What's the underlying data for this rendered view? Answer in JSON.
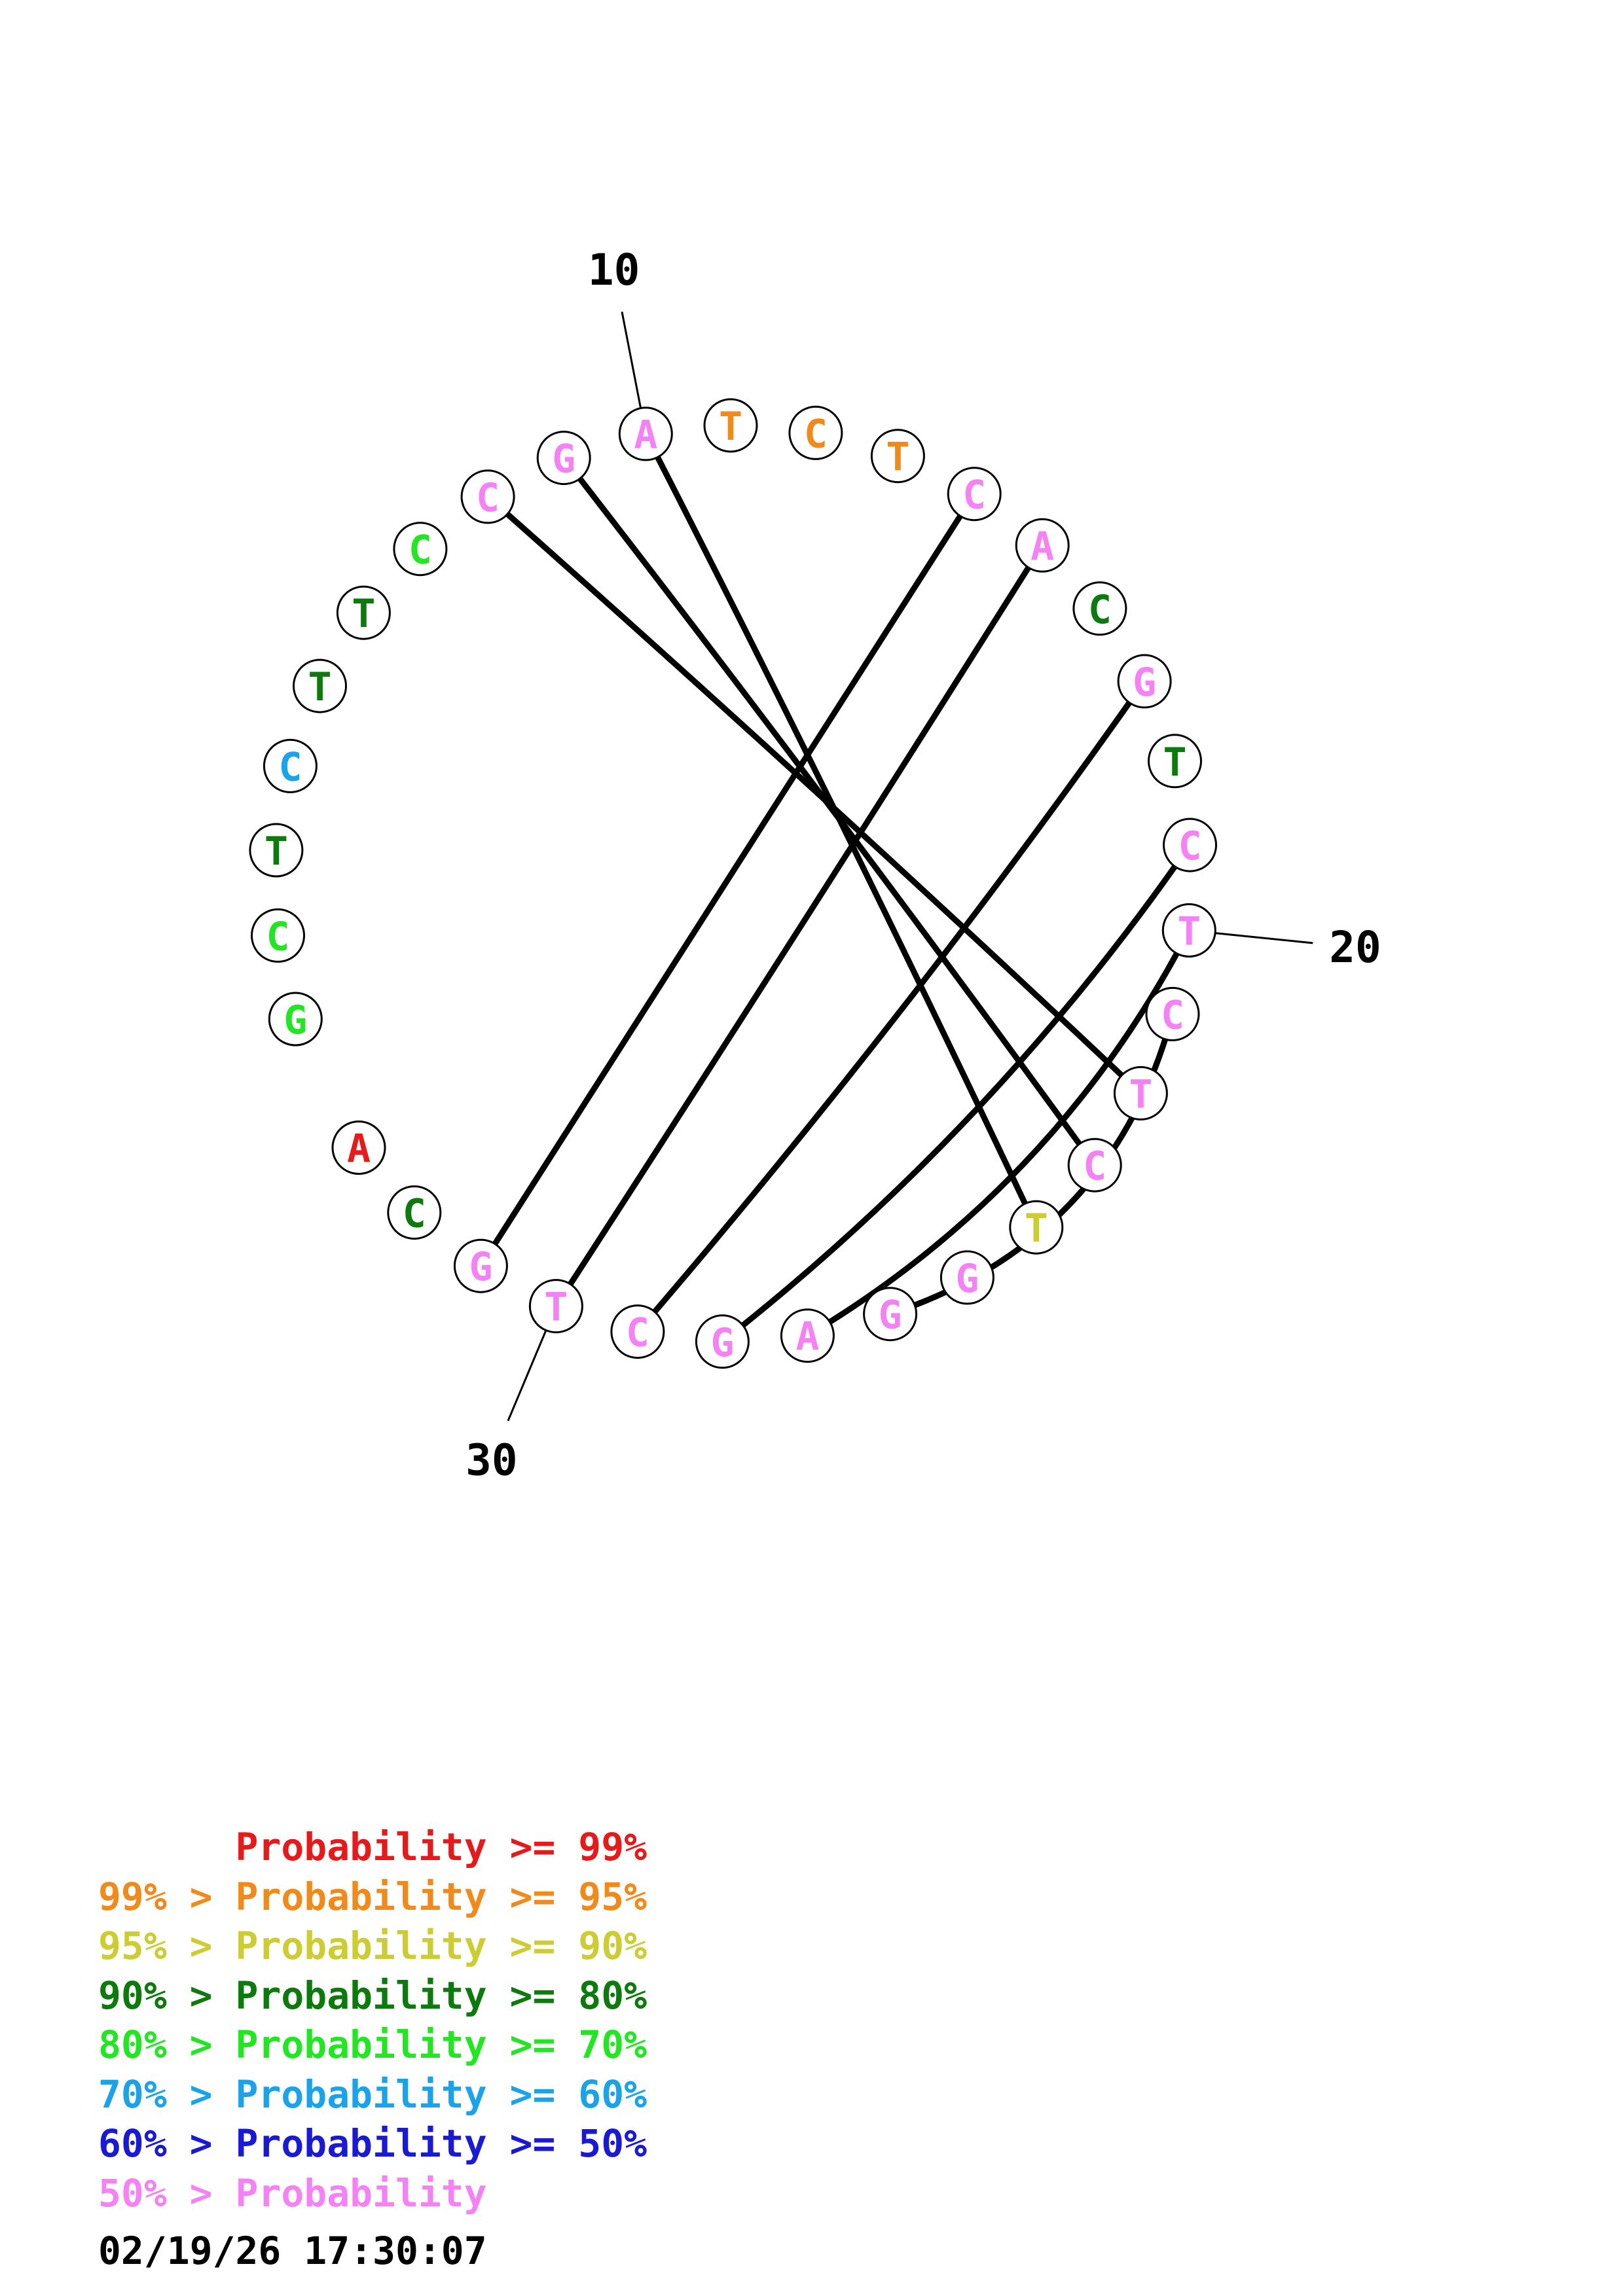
{
  "diagram": {
    "bases": [
      {
        "letter": "G",
        "color": "#22e622"
      },
      {
        "letter": "C",
        "color": "#22e622"
      },
      {
        "letter": "T",
        "color": "#0d7a0d"
      },
      {
        "letter": "C",
        "color": "#1aa3e8"
      },
      {
        "letter": "T",
        "color": "#0d7a0d"
      },
      {
        "letter": "T",
        "color": "#0d7a0d"
      },
      {
        "letter": "C",
        "color": "#22e622"
      },
      {
        "letter": "C",
        "color": "#f582f5"
      },
      {
        "letter": "G",
        "color": "#f582f5"
      },
      {
        "letter": "A",
        "color": "#f582f5"
      },
      {
        "letter": "T",
        "color": "#f08a1a"
      },
      {
        "letter": "C",
        "color": "#f08a1a"
      },
      {
        "letter": "T",
        "color": "#f08a1a"
      },
      {
        "letter": "C",
        "color": "#f582f5"
      },
      {
        "letter": "A",
        "color": "#f582f5"
      },
      {
        "letter": "C",
        "color": "#0d7a0d"
      },
      {
        "letter": "G",
        "color": "#f582f5"
      },
      {
        "letter": "T",
        "color": "#0d7a0d"
      },
      {
        "letter": "C",
        "color": "#f582f5"
      },
      {
        "letter": "T",
        "color": "#f582f5"
      },
      {
        "letter": "C",
        "color": "#f582f5"
      },
      {
        "letter": "T",
        "color": "#f582f5"
      },
      {
        "letter": "C",
        "color": "#f582f5"
      },
      {
        "letter": "T",
        "color": "#cccc33"
      },
      {
        "letter": "G",
        "color": "#f582f5"
      },
      {
        "letter": "G",
        "color": "#f582f5"
      },
      {
        "letter": "A",
        "color": "#f582f5"
      },
      {
        "letter": "G",
        "color": "#f582f5"
      },
      {
        "letter": "C",
        "color": "#f582f5"
      },
      {
        "letter": "T",
        "color": "#f582f5"
      },
      {
        "letter": "G",
        "color": "#f582f5"
      },
      {
        "letter": "C",
        "color": "#0d7a0d"
      },
      {
        "letter": "A",
        "color": "#e61a1a"
      }
    ],
    "pairs": [
      [
        8,
        22
      ],
      [
        9,
        23
      ],
      [
        10,
        24
      ],
      [
        14,
        31
      ],
      [
        15,
        30
      ],
      [
        17,
        29
      ],
      [
        19,
        28
      ],
      [
        20,
        27
      ],
      [
        21,
        26
      ]
    ],
    "index_labels": [
      {
        "base": 10,
        "text": "10"
      },
      {
        "base": 20,
        "text": "20"
      },
      {
        "base": 30,
        "text": "30"
      }
    ]
  },
  "legend": [
    {
      "text": "      Probability >= 99%",
      "color": "#e61a1a"
    },
    {
      "text": "99% > Probability >= 95%",
      "color": "#f08a1a"
    },
    {
      "text": "95% > Probability >= 90%",
      "color": "#cccc33"
    },
    {
      "text": "90% > Probability >= 80%",
      "color": "#0d7a0d"
    },
    {
      "text": "80% > Probability >= 70%",
      "color": "#22e622"
    },
    {
      "text": "70% > Probability >= 60%",
      "color": "#1aa3e8"
    },
    {
      "text": "60% > Probability >= 50%",
      "color": "#1a1ad6"
    },
    {
      "text": "50% > Probability",
      "color": "#f582f5"
    }
  ],
  "timestamp": "02/19/26 17:30:07"
}
